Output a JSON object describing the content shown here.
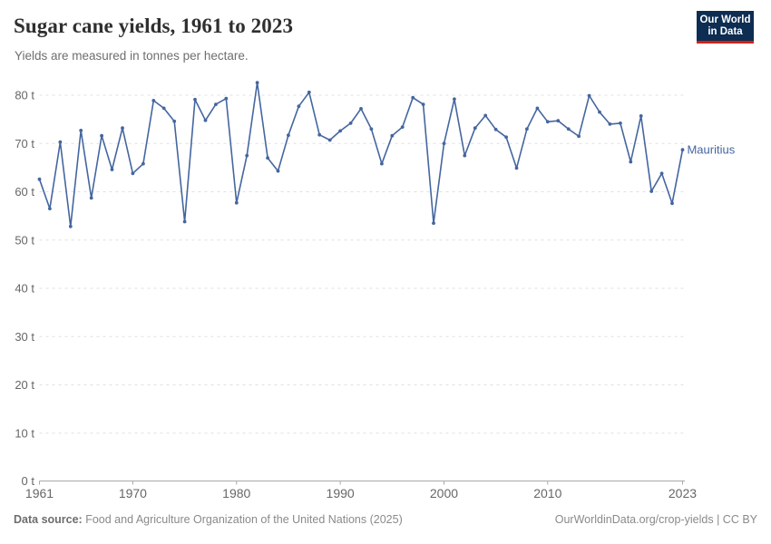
{
  "header": {
    "title": "Sugar cane yields, 1961 to 2023",
    "subtitle": "Yields are measured in tonnes per hectare.",
    "logo": {
      "line1": "Our World",
      "line2": "in Data",
      "bg_color": "#0d2d52",
      "accent_color": "#ce2419"
    }
  },
  "chart_data": {
    "type": "line",
    "title": "Sugar cane yields, 1961 to 2023",
    "ylabel": "tonnes per hectare",
    "xlabel": "",
    "x_range": [
      1961,
      2023
    ],
    "ylim": [
      0,
      85
    ],
    "grid": "horizontal-dashed",
    "legend_position": "end-of-line-label",
    "yticks": [
      0,
      10,
      20,
      30,
      40,
      50,
      60,
      70,
      80
    ],
    "ytick_labels": [
      "0 t",
      "10 t",
      "20 t",
      "30 t",
      "40 t",
      "50 t",
      "60 t",
      "70 t",
      "80 t"
    ],
    "xticks": [
      1961,
      1970,
      1980,
      1990,
      2000,
      2010,
      2023
    ],
    "xtick_labels": [
      "1961",
      "1970",
      "1980",
      "1990",
      "2000",
      "2010",
      "2023"
    ],
    "line_color": "#44669f",
    "gridline_color": "#e0e0e0",
    "axis_color": "#a9a9a9",
    "tick_text_color": "#676767",
    "series": [
      {
        "name": "Mauritius",
        "color": "#44669f",
        "years": [
          1961,
          1962,
          1963,
          1964,
          1965,
          1966,
          1967,
          1968,
          1969,
          1970,
          1971,
          1972,
          1973,
          1974,
          1975,
          1976,
          1977,
          1978,
          1979,
          1980,
          1981,
          1982,
          1983,
          1984,
          1985,
          1986,
          1987,
          1988,
          1989,
          1990,
          1991,
          1992,
          1993,
          1994,
          1995,
          1996,
          1997,
          1998,
          1999,
          2000,
          2001,
          2002,
          2003,
          2004,
          2005,
          2006,
          2007,
          2008,
          2009,
          2010,
          2011,
          2012,
          2013,
          2014,
          2015,
          2016,
          2017,
          2018,
          2019,
          2020,
          2021,
          2022,
          2023
        ],
        "values": [
          62.6,
          56.5,
          70.3,
          52.8,
          72.7,
          58.7,
          71.6,
          64.6,
          73.2,
          63.8,
          65.8,
          78.9,
          77.3,
          74.6,
          53.8,
          79.1,
          74.8,
          78.1,
          79.3,
          57.7,
          67.5,
          82.6,
          67.0,
          64.3,
          71.7,
          77.7,
          80.6,
          71.8,
          70.7,
          72.6,
          74.2,
          77.2,
          73.0,
          65.8,
          71.6,
          73.4,
          79.5,
          78.1,
          53.5,
          70.0,
          79.2,
          67.5,
          73.2,
          75.8,
          72.9,
          71.3,
          64.9,
          73.0,
          77.3,
          74.5,
          74.7,
          73.0,
          71.5,
          79.9,
          76.5,
          74.0,
          74.2,
          66.2,
          75.7,
          60.1,
          63.8,
          57.6,
          68.7
        ]
      }
    ]
  },
  "footer": {
    "datasource_label": "Data source:",
    "datasource_text": "Food and Agriculture Organization of the United Nations (2025)",
    "link_text": "OurWorldinData.org/crop-yields",
    "separator": "|",
    "license_text": "CC BY"
  }
}
